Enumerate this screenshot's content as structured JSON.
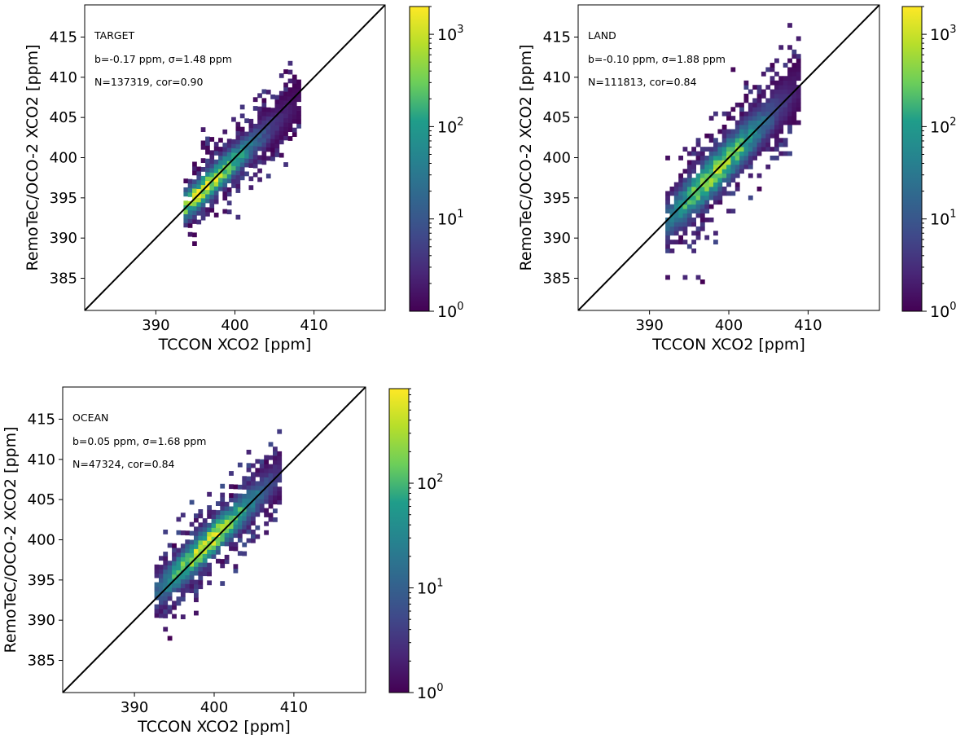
{
  "chart_data": [
    {
      "type": "heatmap",
      "label": "TARGET",
      "stats": [
        "b=-0.17 ppm, σ=1.48 ppm",
        "N=137319, cor=0.90"
      ],
      "xlabel": "TCCON XCO2 [ppm]",
      "ylabel": "RemoTeC/OCO-2 XCO2 [ppm]",
      "xlim": [
        381,
        419
      ],
      "ylim": [
        381,
        419
      ],
      "xticks": [
        "390",
        "400",
        "410"
      ],
      "yticks": [
        "385",
        "390",
        "395",
        "400",
        "405",
        "410",
        "415"
      ],
      "colorbar": {
        "scale": "log",
        "min": 1,
        "max": 2000,
        "ticks": [
          {
            "base": "10",
            "exp": "0"
          },
          {
            "base": "10",
            "exp": "1"
          },
          {
            "base": "10",
            "exp": "2"
          },
          {
            "base": "10",
            "exp": "3"
          }
        ]
      },
      "one_to_one_line": true,
      "density": {
        "x_range": [
          393.5,
          408
        ],
        "slope": 0.9,
        "offset": -0.4,
        "spread": 1.5,
        "tail": 4.5,
        "peak_x": 396,
        "peak_count": 1500
      }
    },
    {
      "type": "heatmap",
      "label": "LAND",
      "stats": [
        "b=-0.10 ppm, σ=1.88 ppm",
        "N=111813, cor=0.84"
      ],
      "xlabel": "TCCON XCO2 [ppm]",
      "ylabel": "RemoTeC/OCO-2 XCO2 [ppm]",
      "xlim": [
        381,
        419
      ],
      "ylim": [
        381,
        419
      ],
      "xticks": [
        "390",
        "400",
        "410"
      ],
      "yticks": [
        "385",
        "390",
        "395",
        "400",
        "405",
        "410",
        "415"
      ],
      "colorbar": {
        "scale": "log",
        "min": 1,
        "max": 2000,
        "ticks": [
          {
            "base": "10",
            "exp": "0"
          },
          {
            "base": "10",
            "exp": "1"
          },
          {
            "base": "10",
            "exp": "2"
          },
          {
            "base": "10",
            "exp": "3"
          }
        ]
      },
      "one_to_one_line": true,
      "density": {
        "x_range": [
          392,
          409
        ],
        "slope": 1.0,
        "offset": -0.1,
        "spread": 2.0,
        "tail": 6.0,
        "peak_x": 398,
        "peak_count": 1200
      }
    },
    {
      "type": "heatmap",
      "label": "OCEAN",
      "stats": [
        "b=0.05 ppm, σ=1.68 ppm",
        "N=47324, cor=0.84"
      ],
      "xlabel": "TCCON XCO2 [ppm]",
      "ylabel": "RemoTeC/OCO-2 XCO2 [ppm]",
      "xlim": [
        381,
        419
      ],
      "ylim": [
        381,
        419
      ],
      "xticks": [
        "390",
        "400",
        "410"
      ],
      "yticks": [
        "385",
        "390",
        "395",
        "400",
        "405",
        "410",
        "415"
      ],
      "colorbar": {
        "scale": "log",
        "min": 1,
        "max": 800,
        "ticks": [
          {
            "base": "10",
            "exp": "0"
          },
          {
            "base": "10",
            "exp": "1"
          },
          {
            "base": "10",
            "exp": "2"
          }
        ]
      },
      "one_to_one_line": true,
      "density": {
        "x_range": [
          392.5,
          408
        ],
        "slope": 0.95,
        "offset": 0.3,
        "spread": 1.7,
        "tail": 5.0,
        "peak_x": 399,
        "peak_count": 700
      }
    }
  ]
}
